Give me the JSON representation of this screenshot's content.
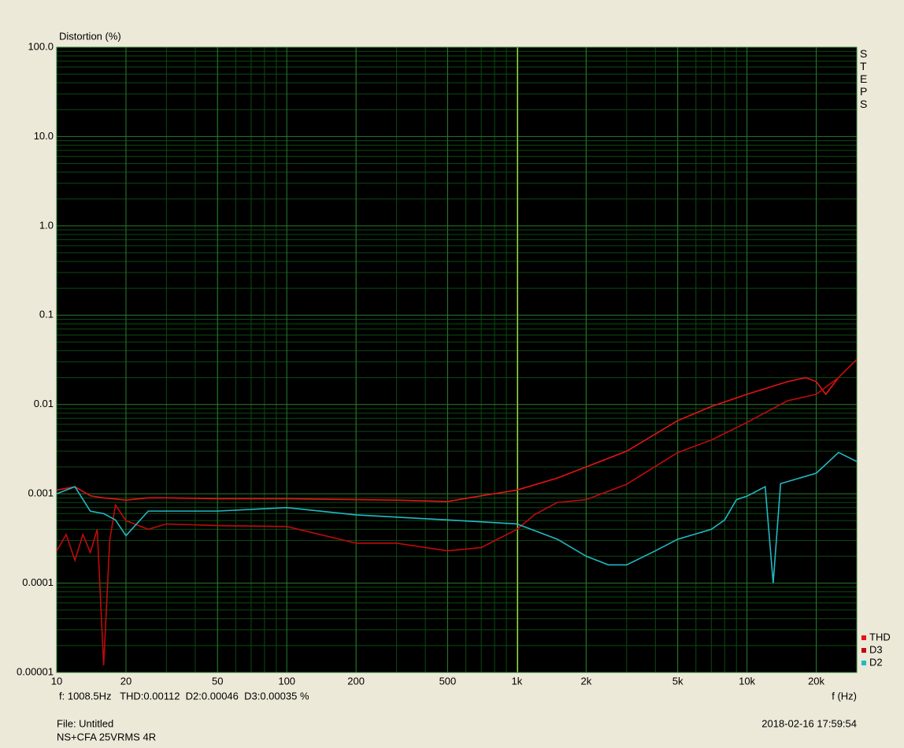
{
  "chart_data": {
    "type": "line",
    "y_label": "Distortion (%)",
    "x_label": "f (Hz)",
    "side_label": "STEPS",
    "cursor_readout": "f: 1008.5Hz   THD:0.00112  D2:0.00046  D3:0.00035 %",
    "cursor": 1008.5,
    "file_label": "File: Untitled",
    "note": "NS+CFA 25VRMS 4R",
    "timestamp": "2018-02-16 17:59:54",
    "log_x": true,
    "log_y": true,
    "grid": true,
    "legend": "bottom-right",
    "xlim": [
      10,
      30000
    ],
    "ylim": [
      1e-05,
      100
    ],
    "xticks": [
      10,
      20,
      50,
      100,
      200,
      500,
      {
        "value": 1000,
        "label": "1k"
      },
      {
        "value": 2000,
        "label": "2k"
      },
      {
        "value": 5000,
        "label": "5k"
      },
      {
        "value": 10000,
        "label": "10k"
      },
      {
        "value": 20000,
        "label": "20k"
      }
    ],
    "yticks": [
      1e-05,
      0.0001,
      0.001,
      0.01,
      0.1,
      {
        "value": 1,
        "label": "1.0"
      },
      {
        "value": 10,
        "label": "10.0"
      },
      {
        "value": 100,
        "label": "100.0"
      }
    ],
    "series": [
      {
        "name": "THD",
        "color": "#e41414",
        "x": [
          10,
          12,
          14,
          16,
          20,
          25,
          30,
          50,
          100,
          200,
          300,
          500,
          700,
          1000,
          1500,
          2000,
          3000,
          5000,
          7000,
          10000,
          15000,
          18000,
          20000,
          22000,
          25000,
          30000
        ],
        "values": [
          0.0011,
          0.0012,
          0.00095,
          0.0009,
          0.00085,
          0.0009,
          0.0009,
          0.00088,
          0.00088,
          0.00086,
          0.00085,
          0.00082,
          0.00095,
          0.0011,
          0.0015,
          0.002,
          0.003,
          0.0066,
          0.0095,
          0.013,
          0.018,
          0.02,
          0.018,
          0.013,
          0.02,
          0.032
        ]
      },
      {
        "name": "D3",
        "color": "#c00a0a",
        "x": [
          10,
          11,
          12,
          13,
          14,
          15,
          16,
          17,
          18,
          20,
          25,
          30,
          50,
          100,
          200,
          300,
          500,
          700,
          1000,
          1200,
          1500,
          2000,
          3000,
          5000,
          7000,
          10000,
          15000,
          20000,
          25000,
          30000
        ],
        "values": [
          0.00023,
          0.00035,
          0.00018,
          0.00035,
          0.00022,
          0.0004,
          1.2e-05,
          0.0003,
          0.00075,
          0.0005,
          0.0004,
          0.00046,
          0.00044,
          0.00043,
          0.00028,
          0.00028,
          0.00023,
          0.00025,
          0.0004,
          0.00059,
          0.0008,
          0.00086,
          0.00128,
          0.0029,
          0.004,
          0.0063,
          0.011,
          0.013,
          0.02,
          0.032
        ]
      },
      {
        "name": "D2",
        "color": "#22b8c4",
        "x": [
          10,
          12,
          14,
          16,
          18,
          20,
          25,
          30,
          50,
          100,
          200,
          500,
          1000,
          1500,
          2000,
          2500,
          3000,
          4000,
          5000,
          7000,
          8000,
          9000,
          10000,
          12000,
          13000,
          14000,
          20000,
          25000,
          30000
        ],
        "values": [
          0.001,
          0.0012,
          0.00064,
          0.0006,
          0.00051,
          0.00034,
          0.00064,
          0.00064,
          0.00064,
          0.0007,
          0.00058,
          0.00051,
          0.00046,
          0.00031,
          0.0002,
          0.00016,
          0.00016,
          0.00023,
          0.00031,
          0.0004,
          0.00051,
          0.00086,
          0.00094,
          0.0012,
          0.0001,
          0.0013,
          0.0017,
          0.0029,
          0.0023
        ]
      }
    ]
  }
}
